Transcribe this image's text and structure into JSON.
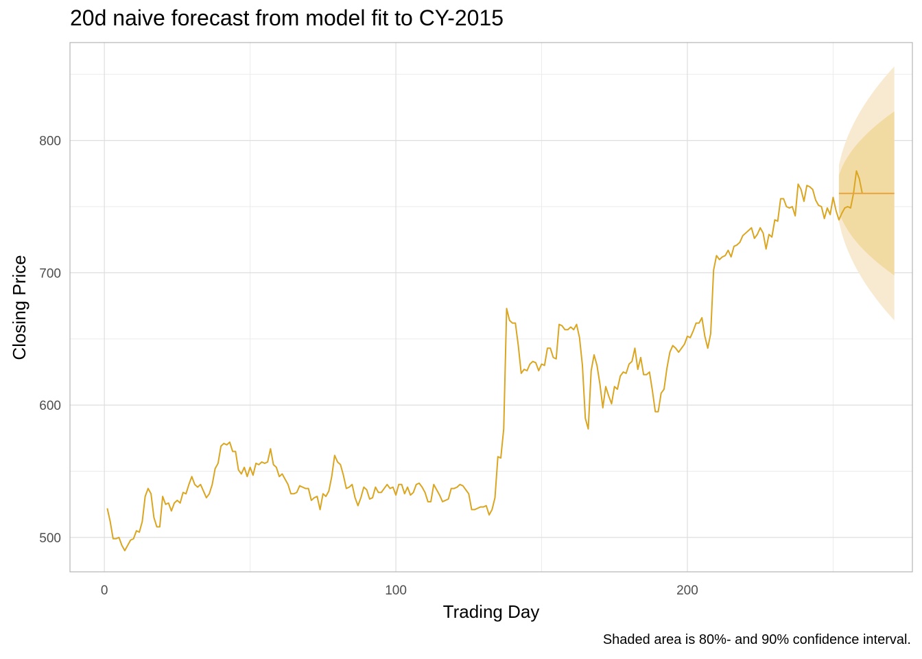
{
  "chart_data": {
    "type": "line",
    "title": "20d naive forecast from model fit to CY-2015",
    "xlabel": "Trading Day",
    "ylabel": "Closing Price",
    "caption": "Shaded area is 80%- and 90% confidence interval.",
    "xlim": [
      -11.8,
      277.2
    ],
    "ylim": [
      474,
      874
    ],
    "x_ticks": [
      0,
      100,
      200
    ],
    "x_tick_labels": [
      "0",
      "100",
      "200"
    ],
    "y_ticks": [
      500,
      600,
      700,
      800
    ],
    "y_tick_labels": [
      "500",
      "600",
      "700",
      "800"
    ],
    "grid": true,
    "series": [
      {
        "color": "#DAA520",
        "x_start": 1,
        "values": [
          522,
          512,
          499,
          499,
          500,
          494,
          490,
          494,
          498,
          499,
          505,
          504,
          512,
          531,
          537,
          533,
          515,
          508,
          508,
          531,
          525,
          526,
          520,
          526,
          528,
          526,
          534,
          533,
          540,
          546,
          540,
          538,
          540,
          535,
          530,
          533,
          540,
          552,
          556,
          569,
          571,
          570,
          572,
          565,
          565,
          551,
          548,
          553,
          546,
          553,
          547,
          556,
          555,
          557,
          556,
          557,
          567,
          555,
          553,
          546,
          548,
          544,
          540,
          533,
          533,
          534,
          539,
          538,
          537,
          537,
          528,
          530,
          531,
          521,
          533,
          531,
          535,
          546,
          562,
          557,
          555,
          547,
          537,
          538,
          540,
          530,
          524,
          530,
          538,
          536,
          529,
          530,
          538,
          534,
          534,
          537,
          540,
          537,
          538,
          532,
          540,
          540,
          533,
          538,
          532,
          534,
          540,
          541,
          538,
          534,
          527,
          527,
          540,
          536,
          532,
          527,
          528,
          529,
          537,
          537,
          538,
          540,
          539,
          536,
          533,
          521,
          521,
          522,
          523,
          523,
          524,
          517,
          521,
          530,
          561,
          560,
          582,
          673,
          664,
          662,
          662,
          645,
          624,
          627,
          626,
          631,
          633,
          632,
          626,
          631,
          630,
          643,
          643,
          636,
          635,
          661,
          660,
          657,
          657,
          659,
          657,
          661,
          651,
          630,
          590,
          582,
          626,
          638,
          630,
          616,
          598,
          614,
          607,
          601,
          614,
          612,
          622,
          625,
          624,
          631,
          633,
          643,
          627,
          636,
          623,
          623,
          625,
          611,
          595,
          595,
          609,
          612,
          628,
          640,
          645,
          643,
          640,
          643,
          646,
          652,
          651,
          656,
          662,
          662,
          666,
          652,
          643,
          654,
          702,
          713,
          710,
          712,
          713,
          717,
          712,
          720,
          721,
          723,
          728,
          730,
          732,
          734,
          726,
          729,
          734,
          730,
          718,
          729,
          727,
          740,
          739,
          756,
          756,
          750,
          749,
          750,
          743,
          767,
          763,
          754,
          766,
          765,
          763,
          755,
          751,
          750,
          741,
          749,
          744,
          757,
          747,
          740,
          745,
          749,
          750,
          749,
          760,
          777,
          771,
          760
        ]
      }
    ],
    "forecast": {
      "x_start": 252,
      "x_end": 271,
      "point": 760,
      "line_color": "#E8A33C",
      "band80_color": "#F2DBA3",
      "band90_color": "#F8EAD0",
      "band80_half_width_end": 62,
      "band90_half_width_end": 96
    }
  }
}
